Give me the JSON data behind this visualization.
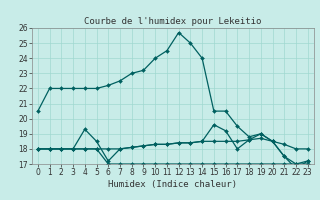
{
  "title": "Courbe de l’humidex pour Lekeitio",
  "xlabel": "Humidex (Indice chaleur)",
  "xlim": [
    -0.5,
    23.5
  ],
  "ylim": [
    17,
    26
  ],
  "yticks": [
    17,
    18,
    19,
    20,
    21,
    22,
    23,
    24,
    25,
    26
  ],
  "xticks": [
    0,
    1,
    2,
    3,
    4,
    5,
    6,
    7,
    8,
    9,
    10,
    11,
    12,
    13,
    14,
    15,
    16,
    17,
    18,
    19,
    20,
    21,
    22,
    23
  ],
  "bg_color": "#c8ece8",
  "line_color": "#006060",
  "grid_color": "#a0d8d0",
  "lines": [
    {
      "x": [
        0,
        1,
        2,
        3,
        4,
        5,
        6,
        7,
        8,
        9,
        10,
        11,
        12,
        13,
        14,
        15,
        16,
        17,
        18,
        19,
        20,
        21,
        22,
        23
      ],
      "y": [
        20.5,
        22,
        22,
        22,
        22,
        22,
        22.2,
        22.5,
        23,
        23.2,
        24,
        24.5,
        25.7,
        25,
        24,
        20.5,
        20.5,
        19.5,
        18.8,
        19,
        18.5,
        17.5,
        17,
        17.2
      ]
    },
    {
      "x": [
        0,
        1,
        2,
        3,
        4,
        5,
        6,
        7,
        8,
        9,
        10,
        11,
        12,
        13,
        14,
        15,
        16,
        17,
        18,
        19,
        20,
        21,
        22,
        23
      ],
      "y": [
        18,
        18,
        18,
        18,
        19.3,
        18.5,
        17.2,
        18,
        18.1,
        18.2,
        18.3,
        18.3,
        18.4,
        18.4,
        18.5,
        19.6,
        19.2,
        18,
        18.6,
        19,
        18.5,
        17.5,
        16.7,
        17.2
      ]
    },
    {
      "x": [
        0,
        1,
        2,
        3,
        4,
        5,
        6,
        7,
        8,
        9,
        10,
        11,
        12,
        13,
        14,
        15,
        16,
        17,
        18,
        19,
        20,
        21,
        22,
        23
      ],
      "y": [
        18,
        18,
        18,
        18,
        18,
        18,
        17,
        17,
        17,
        17,
        17,
        17,
        17,
        17,
        17,
        17,
        17,
        17,
        17,
        17,
        17,
        17,
        17,
        17
      ]
    },
    {
      "x": [
        0,
        1,
        2,
        3,
        4,
        5,
        6,
        7,
        8,
        9,
        10,
        11,
        12,
        13,
        14,
        15,
        16,
        17,
        18,
        19,
        20,
        21,
        22,
        23
      ],
      "y": [
        18,
        18,
        18,
        18,
        18,
        18,
        18,
        18,
        18.1,
        18.2,
        18.3,
        18.3,
        18.4,
        18.4,
        18.5,
        18.5,
        18.5,
        18.5,
        18.6,
        18.7,
        18.5,
        18.3,
        18,
        18
      ]
    }
  ]
}
